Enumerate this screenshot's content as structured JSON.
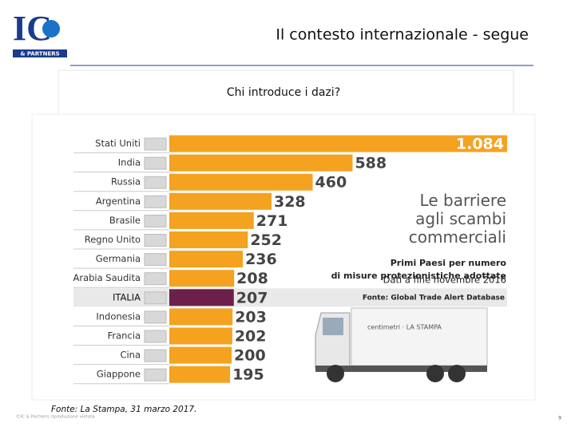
{
  "header": {
    "logo": "IC",
    "logo_sub": "& PARTNERS",
    "title": "Il contesto internazionale - segue"
  },
  "question": "Chi introduce i dazi?",
  "chart_data": {
    "type": "barh",
    "title": "Le barriere agli scambi commerciali",
    "subtitle": "Primi Paesi per numero di misure protezionistiche adottate",
    "note": "Dati a fine novembre 2016",
    "source": "Fonte: Global Trade Alert Database",
    "truck_text": "centimetri · LA STAMPA",
    "categories": [
      "Stati Uniti",
      "India",
      "Russia",
      "Argentina",
      "Brasile",
      "Regno Unito",
      "Germania",
      "Arabia Saudita",
      "ITALIA",
      "Indonesia",
      "Francia",
      "Cina",
      "Giappone"
    ],
    "values": [
      1084,
      588,
      460,
      328,
      271,
      252,
      236,
      208,
      207,
      203,
      202,
      200,
      195
    ],
    "value_labels": [
      "1.084",
      "588",
      "460",
      "328",
      "271",
      "252",
      "236",
      "208",
      "207",
      "203",
      "202",
      "200",
      "195"
    ],
    "colors": [
      "#f4a21f",
      "#f4a21f",
      "#f4a21f",
      "#f4a21f",
      "#f4a21f",
      "#f4a21f",
      "#f4a21f",
      "#f4a21f",
      "#6d1f4b",
      "#f4a21f",
      "#f4a21f",
      "#f4a21f",
      "#f4a21f"
    ]
  },
  "footer": {
    "source": "Fonte: La Stampa, 31 marzo 2017.",
    "copyright": "©IC & Partners riproduzione vietata",
    "page": "9"
  }
}
